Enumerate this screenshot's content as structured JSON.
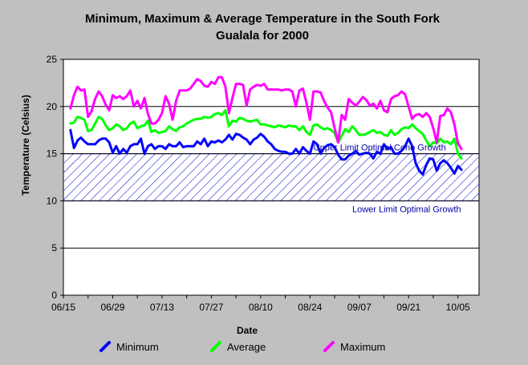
{
  "chart_data": {
    "type": "line",
    "title_lines": [
      "Minimum, Maximum & Average Temperature in the South Fork",
      "Gualala for 2000"
    ],
    "xlabel": "Date",
    "ylabel": "Temperature (Celsius)",
    "ylim": [
      0,
      25
    ],
    "yticks": [
      0,
      5,
      10,
      15,
      20,
      25
    ],
    "xlim": [
      "2000-06-15",
      "2000-10-11"
    ],
    "xticks": [
      "06/15",
      "06/29",
      "07/13",
      "07/27",
      "08/10",
      "08/24",
      "09/07",
      "09/21",
      "10/05"
    ],
    "xtick_dates": [
      "2000-06-15",
      "2000-06-29",
      "2000-07-13",
      "2000-07-27",
      "2000-08-10",
      "2000-08-24",
      "2000-09-07",
      "2000-09-21",
      "2000-10-05"
    ],
    "grid": "horizontal",
    "legend_position": "bottom",
    "optimal_band": {
      "lower": 10,
      "upper": 15,
      "fill": "hatched",
      "color": "#0000cc"
    },
    "annotations": [
      {
        "text": "Upper Limit Optimal Coho Growth",
        "y": 15,
        "x": "2000-08-25"
      },
      {
        "text": "Lower Limit Optimal Growth",
        "y": 10,
        "x": "2000-09-05"
      }
    ],
    "series": [
      {
        "name": "Minimum",
        "color": "#0000ff",
        "x": [
          "2000-06-17",
          "2000-06-18",
          "2000-06-19",
          "2000-06-20",
          "2000-06-21",
          "2000-06-22",
          "2000-06-23",
          "2000-06-24",
          "2000-06-25",
          "2000-06-26",
          "2000-06-27",
          "2000-06-28",
          "2000-06-29",
          "2000-06-30",
          "2000-07-01",
          "2000-07-02",
          "2000-07-03",
          "2000-07-04",
          "2000-07-05",
          "2000-07-06",
          "2000-07-07",
          "2000-07-08",
          "2000-07-09",
          "2000-07-10",
          "2000-07-11",
          "2000-07-12",
          "2000-07-13",
          "2000-07-14",
          "2000-07-15",
          "2000-07-16",
          "2000-07-17",
          "2000-07-18",
          "2000-07-19",
          "2000-07-20",
          "2000-07-21",
          "2000-07-22",
          "2000-07-23",
          "2000-07-24",
          "2000-07-25",
          "2000-07-26",
          "2000-07-27",
          "2000-07-28",
          "2000-07-29",
          "2000-07-30",
          "2000-07-31",
          "2000-08-01",
          "2000-08-02",
          "2000-08-03",
          "2000-08-04",
          "2000-08-05",
          "2000-08-06",
          "2000-08-07",
          "2000-08-08",
          "2000-08-09",
          "2000-08-10",
          "2000-08-11",
          "2000-08-12",
          "2000-08-13",
          "2000-08-14",
          "2000-08-15",
          "2000-08-16",
          "2000-08-17",
          "2000-08-18",
          "2000-08-19",
          "2000-08-20",
          "2000-08-21",
          "2000-08-22",
          "2000-08-23",
          "2000-08-24",
          "2000-08-25",
          "2000-08-26",
          "2000-08-27",
          "2000-08-28",
          "2000-08-29",
          "2000-08-30",
          "2000-08-31",
          "2000-09-01",
          "2000-09-02",
          "2000-09-03",
          "2000-09-04",
          "2000-09-05",
          "2000-09-06",
          "2000-09-07",
          "2000-09-08",
          "2000-09-09",
          "2000-09-10",
          "2000-09-11",
          "2000-09-12",
          "2000-09-13",
          "2000-09-14",
          "2000-09-15",
          "2000-09-16",
          "2000-09-17",
          "2000-09-18",
          "2000-09-19",
          "2000-09-20",
          "2000-09-21",
          "2000-09-22",
          "2000-09-23",
          "2000-09-24",
          "2000-09-25",
          "2000-09-26",
          "2000-09-27",
          "2000-09-28",
          "2000-09-29",
          "2000-09-30",
          "2000-10-01",
          "2000-10-02",
          "2000-10-03",
          "2000-10-04",
          "2000-10-05",
          "2000-10-06"
        ],
        "values": [
          17.5,
          15.6,
          16.4,
          16.7,
          16.3,
          16.0,
          16.0,
          16.0,
          16.4,
          16.6,
          16.6,
          16.2,
          15.1,
          15.8,
          15.0,
          15.5,
          15.1,
          15.8,
          16.0,
          16.0,
          16.6,
          15.0,
          15.8,
          16.0,
          15.5,
          15.8,
          15.8,
          15.5,
          16.0,
          15.8,
          15.8,
          16.2,
          15.7,
          15.8,
          15.8,
          15.8,
          16.3,
          16.0,
          16.6,
          15.8,
          16.3,
          16.2,
          16.4,
          16.2,
          16.5,
          17.0,
          16.5,
          17.1,
          17.0,
          16.7,
          16.5,
          16.0,
          16.5,
          16.7,
          17.1,
          16.8,
          16.3,
          16.0,
          15.5,
          15.3,
          15.2,
          15.2,
          15.0,
          15.0,
          15.5,
          15.0,
          15.7,
          15.3,
          15.0,
          16.3,
          16.0,
          15.0,
          15.6,
          15.9,
          16.0,
          15.7,
          14.9,
          14.4,
          14.4,
          14.8,
          15.0,
          15.3,
          14.9,
          15.0,
          15.1,
          15.0,
          14.5,
          15.2,
          15.0,
          16.0,
          15.5,
          15.7,
          15.0,
          15.0,
          15.3,
          15.8,
          16.6,
          15.8,
          14.0,
          13.2,
          12.8,
          13.8,
          14.5,
          14.4,
          13.2,
          14.0,
          14.3,
          14.0,
          13.5,
          12.9,
          13.7,
          13.3
        ]
      },
      {
        "name": "Average",
        "color": "#00ff00",
        "x": [
          "2000-06-17",
          "2000-06-18",
          "2000-06-19",
          "2000-06-20",
          "2000-06-21",
          "2000-06-22",
          "2000-06-23",
          "2000-06-24",
          "2000-06-25",
          "2000-06-26",
          "2000-06-27",
          "2000-06-28",
          "2000-06-29",
          "2000-06-30",
          "2000-07-01",
          "2000-07-02",
          "2000-07-03",
          "2000-07-04",
          "2000-07-05",
          "2000-07-06",
          "2000-07-07",
          "2000-07-08",
          "2000-07-09",
          "2000-07-10",
          "2000-07-11",
          "2000-07-12",
          "2000-07-13",
          "2000-07-14",
          "2000-07-15",
          "2000-07-16",
          "2000-07-17",
          "2000-07-18",
          "2000-07-19",
          "2000-07-20",
          "2000-07-21",
          "2000-07-22",
          "2000-07-23",
          "2000-07-24",
          "2000-07-25",
          "2000-07-26",
          "2000-07-27",
          "2000-07-28",
          "2000-07-29",
          "2000-07-30",
          "2000-07-31",
          "2000-08-01",
          "2000-08-02",
          "2000-08-03",
          "2000-08-04",
          "2000-08-05",
          "2000-08-06",
          "2000-08-07",
          "2000-08-08",
          "2000-08-09",
          "2000-08-10",
          "2000-08-11",
          "2000-08-12",
          "2000-08-13",
          "2000-08-14",
          "2000-08-15",
          "2000-08-16",
          "2000-08-17",
          "2000-08-18",
          "2000-08-19",
          "2000-08-20",
          "2000-08-21",
          "2000-08-22",
          "2000-08-23",
          "2000-08-24",
          "2000-08-25",
          "2000-08-26",
          "2000-08-27",
          "2000-08-28",
          "2000-08-29",
          "2000-08-30",
          "2000-08-31",
          "2000-09-01",
          "2000-09-02",
          "2000-09-03",
          "2000-09-04",
          "2000-09-05",
          "2000-09-06",
          "2000-09-07",
          "2000-09-08",
          "2000-09-09",
          "2000-09-10",
          "2000-09-11",
          "2000-09-12",
          "2000-09-13",
          "2000-09-14",
          "2000-09-15",
          "2000-09-16",
          "2000-09-17",
          "2000-09-18",
          "2000-09-19",
          "2000-09-20",
          "2000-09-21",
          "2000-09-22",
          "2000-09-23",
          "2000-09-24",
          "2000-09-25",
          "2000-09-26",
          "2000-09-27",
          "2000-09-28",
          "2000-09-29",
          "2000-09-30",
          "2000-10-01",
          "2000-10-02",
          "2000-10-03",
          "2000-10-04",
          "2000-10-05",
          "2000-10-06"
        ],
        "values": [
          18.2,
          18.3,
          18.9,
          18.8,
          18.6,
          17.4,
          17.5,
          18.2,
          18.9,
          18.7,
          18.0,
          17.5,
          17.7,
          18.1,
          17.9,
          17.5,
          17.7,
          18.2,
          18.4,
          17.7,
          17.9,
          18.0,
          18.5,
          17.3,
          17.5,
          17.2,
          17.3,
          17.4,
          17.9,
          17.6,
          17.4,
          17.8,
          17.9,
          18.2,
          18.4,
          18.6,
          18.7,
          18.7,
          18.9,
          18.8,
          18.9,
          19.2,
          19.3,
          19.1,
          19.6,
          17.9,
          18.5,
          18.4,
          18.8,
          18.7,
          18.5,
          18.4,
          18.5,
          18.6,
          18.1,
          18.1,
          18.0,
          17.9,
          17.8,
          18.0,
          17.9,
          17.8,
          18.0,
          17.9,
          17.9,
          17.5,
          17.9,
          17.3,
          17.0,
          18.0,
          18.1,
          17.8,
          17.6,
          17.7,
          17.5,
          17.2,
          16.2,
          16.9,
          17.6,
          17.3,
          17.9,
          17.5,
          17.0,
          17.0,
          17.1,
          17.3,
          17.5,
          17.2,
          17.3,
          17.0,
          16.9,
          17.5,
          17.0,
          17.2,
          17.6,
          17.8,
          17.7,
          18.1,
          17.7,
          17.4,
          17.1,
          16.4,
          15.8,
          16.2,
          16.1,
          16.6,
          16.2,
          16.3,
          16.0,
          16.6,
          15.0,
          14.5
        ]
      },
      {
        "name": "Maximum",
        "color": "#ff00ff",
        "x": [
          "2000-06-17",
          "2000-06-18",
          "2000-06-19",
          "2000-06-20",
          "2000-06-21",
          "2000-06-22",
          "2000-06-23",
          "2000-06-24",
          "2000-06-25",
          "2000-06-26",
          "2000-06-27",
          "2000-06-28",
          "2000-06-29",
          "2000-06-30",
          "2000-07-01",
          "2000-07-02",
          "2000-07-03",
          "2000-07-04",
          "2000-07-05",
          "2000-07-06",
          "2000-07-07",
          "2000-07-08",
          "2000-07-09",
          "2000-07-10",
          "2000-07-11",
          "2000-07-12",
          "2000-07-13",
          "2000-07-14",
          "2000-07-15",
          "2000-07-16",
          "2000-07-17",
          "2000-07-18",
          "2000-07-19",
          "2000-07-20",
          "2000-07-21",
          "2000-07-22",
          "2000-07-23",
          "2000-07-24",
          "2000-07-25",
          "2000-07-26",
          "2000-07-27",
          "2000-07-28",
          "2000-07-29",
          "2000-07-30",
          "2000-07-31",
          "2000-08-01",
          "2000-08-02",
          "2000-08-03",
          "2000-08-04",
          "2000-08-05",
          "2000-08-06",
          "2000-08-07",
          "2000-08-08",
          "2000-08-09",
          "2000-08-10",
          "2000-08-11",
          "2000-08-12",
          "2000-08-13",
          "2000-08-14",
          "2000-08-15",
          "2000-08-16",
          "2000-08-17",
          "2000-08-18",
          "2000-08-19",
          "2000-08-20",
          "2000-08-21",
          "2000-08-22",
          "2000-08-23",
          "2000-08-24",
          "2000-08-25",
          "2000-08-26",
          "2000-08-27",
          "2000-08-28",
          "2000-08-29",
          "2000-08-30",
          "2000-08-31",
          "2000-09-01",
          "2000-09-02",
          "2000-09-03",
          "2000-09-04",
          "2000-09-05",
          "2000-09-06",
          "2000-09-07",
          "2000-09-08",
          "2000-09-09",
          "2000-09-10",
          "2000-09-11",
          "2000-09-12",
          "2000-09-13",
          "2000-09-14",
          "2000-09-15",
          "2000-09-16",
          "2000-09-17",
          "2000-09-18",
          "2000-09-19",
          "2000-09-20",
          "2000-09-21",
          "2000-09-22",
          "2000-09-23",
          "2000-09-24",
          "2000-09-25",
          "2000-09-26",
          "2000-09-27",
          "2000-09-28",
          "2000-09-29",
          "2000-09-30",
          "2000-10-01",
          "2000-10-02",
          "2000-10-03",
          "2000-10-04",
          "2000-10-05",
          "2000-10-06"
        ],
        "values": [
          19.8,
          21.2,
          22.1,
          21.7,
          21.8,
          18.9,
          19.5,
          20.8,
          21.6,
          21.1,
          20.2,
          19.6,
          21.2,
          20.9,
          21.1,
          20.8,
          21.1,
          21.7,
          20.0,
          20.6,
          19.8,
          20.9,
          19.2,
          18.2,
          18.2,
          18.6,
          19.3,
          21.1,
          20.3,
          18.6,
          20.6,
          21.7,
          21.7,
          21.7,
          21.9,
          22.4,
          22.9,
          22.7,
          22.2,
          22.1,
          22.6,
          22.4,
          23.1,
          23.1,
          22.1,
          19.3,
          20.9,
          22.4,
          22.4,
          22.3,
          20.1,
          21.8,
          22.1,
          22.3,
          22.2,
          22.4,
          21.8,
          21.8,
          21.8,
          21.8,
          21.7,
          21.8,
          21.8,
          21.6,
          20.0,
          21.7,
          21.9,
          20.4,
          18.6,
          21.6,
          21.6,
          21.5,
          20.6,
          19.9,
          19.4,
          17.7,
          16.2,
          19.1,
          18.6,
          20.8,
          20.4,
          20.1,
          20.5,
          21.0,
          20.7,
          20.1,
          20.3,
          19.8,
          20.6,
          19.6,
          19.4,
          20.8,
          21.1,
          21.2,
          21.6,
          21.3,
          20.0,
          18.7,
          19.1,
          19.2,
          18.9,
          19.3,
          18.9,
          17.7,
          16.2,
          19.0,
          19.1,
          19.8,
          19.4,
          18.1,
          16.1,
          15.5
        ]
      }
    ]
  }
}
